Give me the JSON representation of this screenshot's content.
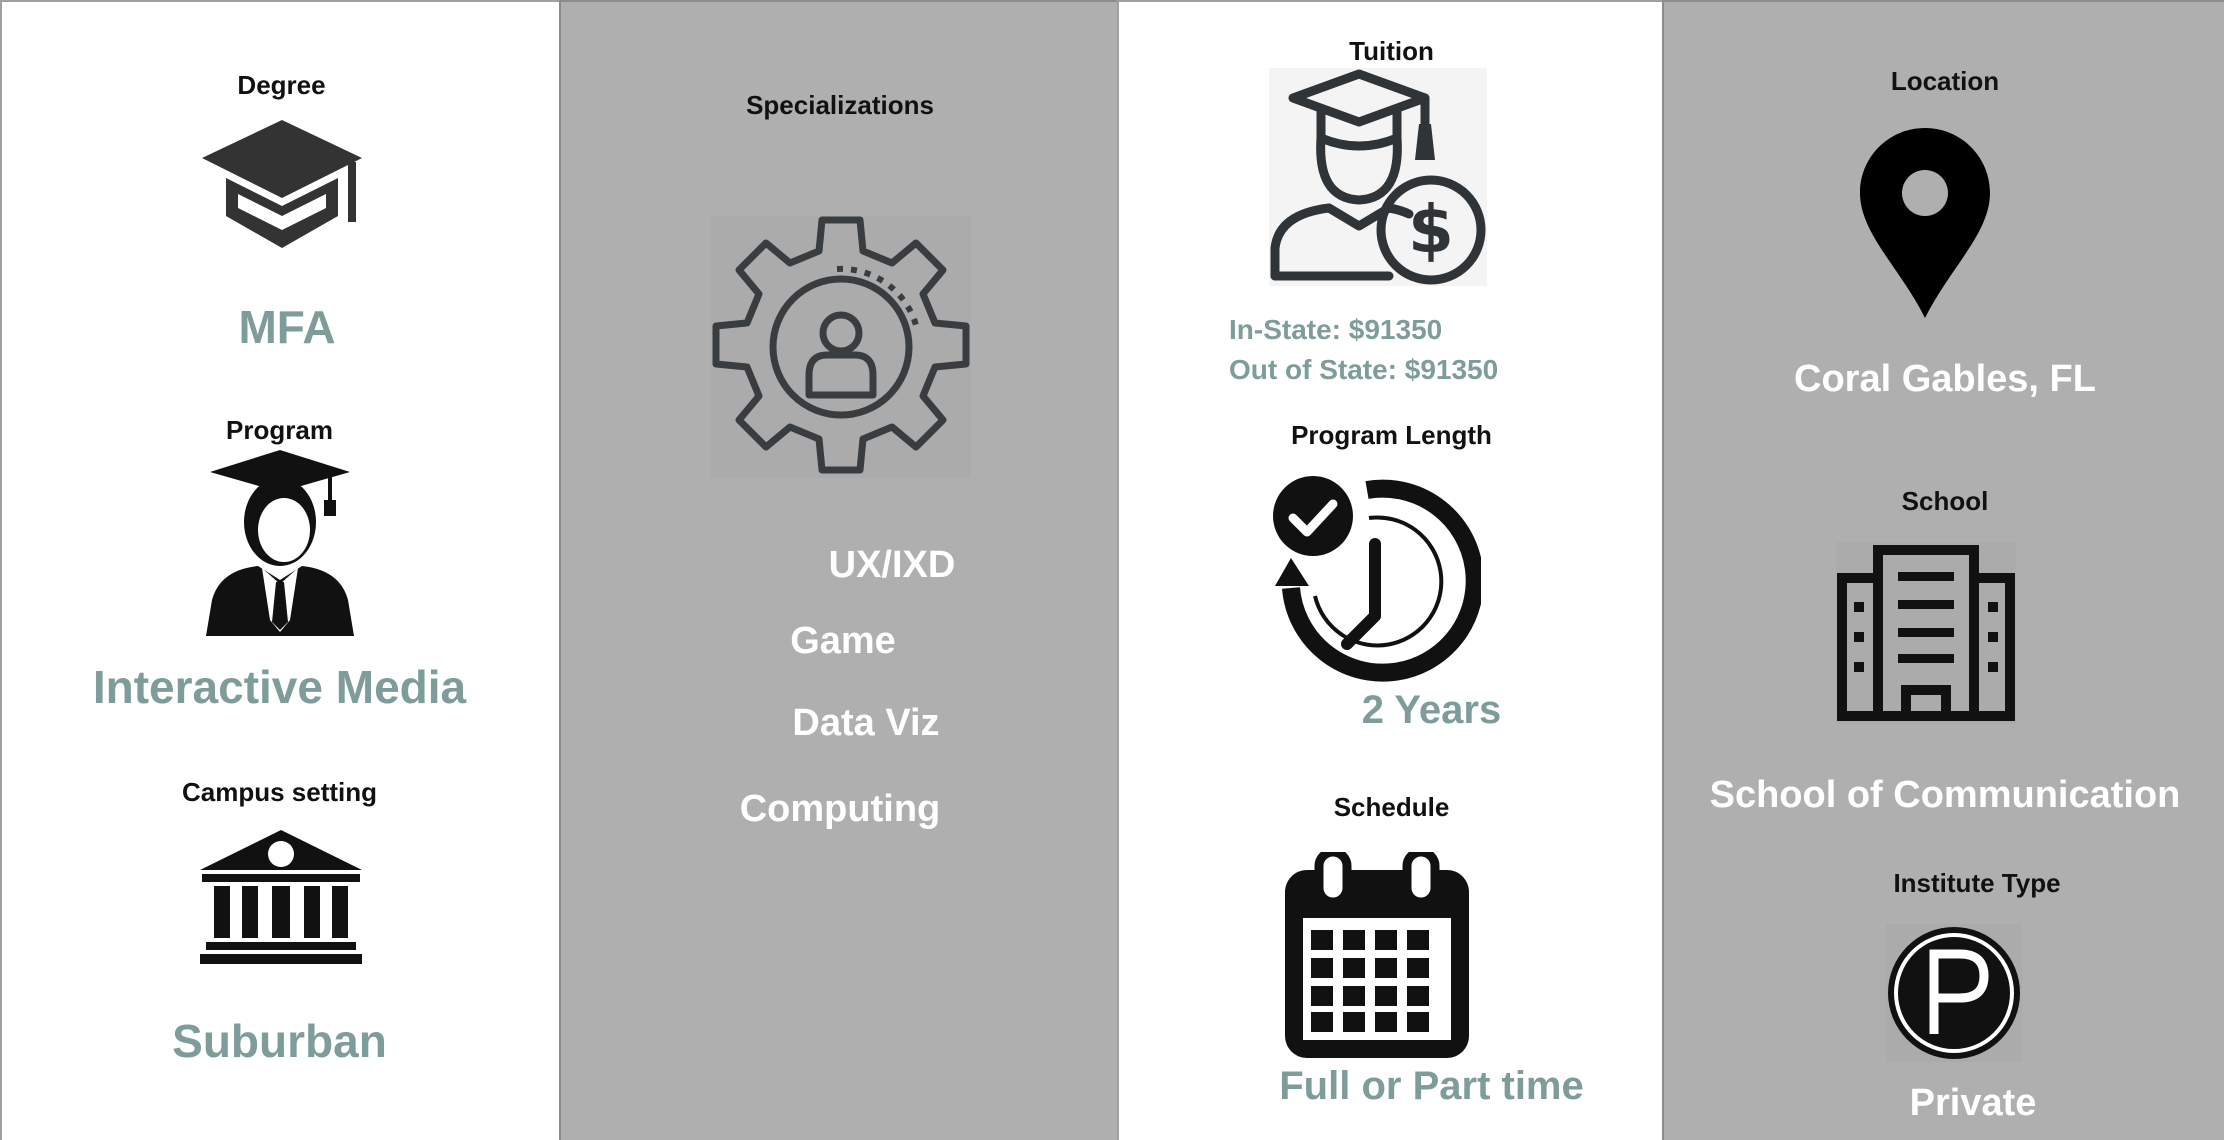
{
  "degree": {
    "label": "Degree",
    "value": "MFA",
    "icon": "mortarboard-icon"
  },
  "program": {
    "label": "Program",
    "value": "Interactive Media",
    "icon": "graduate-person-icon"
  },
  "campus": {
    "label": "Campus setting",
    "value": "Suburban",
    "icon": "institution-building-icon"
  },
  "specializations": {
    "label": "Specializations",
    "icon": "gear-person-icon",
    "items": [
      "UX/IXD",
      "Game",
      "Data Viz",
      "Computing"
    ]
  },
  "tuition": {
    "label": "Tuition",
    "in_state": "In-State: $91350",
    "out_state": "Out of State: $91350",
    "icon": "graduate-dollar-icon"
  },
  "program_length": {
    "label": "Program Length",
    "value": "2 Years",
    "icon": "clock-check-icon"
  },
  "schedule": {
    "label": "Schedule",
    "value": "Full or Part time",
    "icon": "calendar-icon"
  },
  "location": {
    "label": "Location",
    "value": "Coral Gables, FL",
    "icon": "map-pin-icon"
  },
  "school": {
    "label": "School",
    "value": "School of Communication",
    "icon": "office-building-icon"
  },
  "institute_type": {
    "label": "Institute Type",
    "value": "Private",
    "icon": "private-p-icon"
  },
  "colors": {
    "accent": "#7d9c9a",
    "panel_gray": "#b0afb0",
    "icon_dark": "#2f3438"
  }
}
